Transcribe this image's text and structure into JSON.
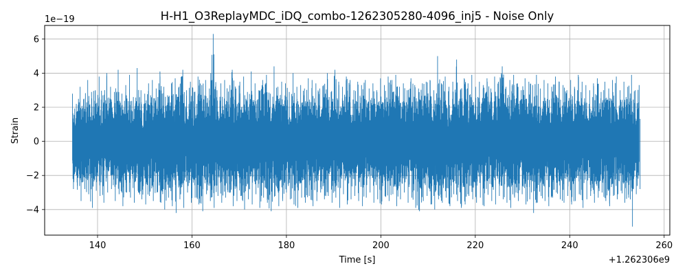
{
  "chart_data": {
    "type": "line",
    "title": "H-H1_O3ReplayMDC_iDQ_combo-1262305280-4096_inj5 - Noise Only",
    "xlabel": "Time [s]",
    "ylabel": "Strain",
    "x_offset_label": "+1.262306e9",
    "y_scale_label": "1e−19",
    "xlim": [
      128.8,
      261.2
    ],
    "ylim": [
      -5.5,
      6.8
    ],
    "x_ticks": [
      140,
      160,
      180,
      200,
      220,
      240,
      260
    ],
    "x_tick_labels": [
      "140",
      "160",
      "180",
      "200",
      "220",
      "240",
      "260"
    ],
    "y_ticks": [
      -4,
      -2,
      0,
      2,
      4,
      6
    ],
    "y_tick_labels": [
      "−4",
      "−2",
      "0",
      "2",
      "4",
      "6"
    ],
    "grid": true,
    "series": [
      {
        "color": "#1f77b4",
        "x_start": 134.7,
        "x_end": 254.7,
        "envelope_upper": [
          2.8,
          2.2,
          3.2,
          2.5,
          3.6,
          2.9,
          3.0,
          3.8,
          2.7,
          4.0,
          3.2,
          2.9,
          4.2,
          2.8,
          3.3,
          3.9,
          2.6,
          4.3,
          3.0,
          2.8,
          3.4,
          3.6,
          3.1,
          4.1,
          3.2,
          2.7,
          3.4,
          3.7,
          3.2,
          4.2,
          3.0,
          3.5,
          2.9,
          3.8,
          3.3,
          3.6,
          3.1,
          6.3,
          3.0,
          3.4,
          3.6,
          2.9,
          4.2,
          3.1,
          3.5,
          3.8,
          2.9,
          4.1,
          3.4,
          3.0,
          3.6,
          3.9,
          2.8,
          4.4,
          3.2,
          3.5,
          3.4,
          2.9,
          4.0,
          3.2,
          3.3,
          3.1,
          3.7,
          3.6,
          3.4,
          3.1,
          3.3,
          4.0,
          2.9,
          4.2,
          3.5,
          3.2,
          3.8,
          3.6,
          3.0,
          3.5,
          3.3,
          3.6,
          3.1,
          3.4,
          3.0,
          3.7,
          3.3,
          3.8,
          3.6,
          3.9,
          3.2,
          3.4,
          3.0,
          3.7,
          3.3,
          3.1,
          3.4,
          3.5,
          3.6,
          3.0,
          5.0,
          3.4,
          3.8,
          3.2,
          3.5,
          4.8,
          3.0,
          3.7,
          3.4,
          3.9,
          3.2,
          3.5,
          3.3,
          3.7,
          3.1,
          3.8,
          3.5,
          4.4,
          3.2,
          3.6,
          3.9,
          3.4,
          3.0,
          3.7,
          3.5,
          3.3,
          3.9,
          3.1,
          3.6,
          3.4,
          3.2,
          3.8,
          3.5,
          3.3,
          3.0,
          3.6,
          3.2,
          3.9,
          3.5,
          3.3,
          3.0,
          3.4,
          3.7,
          2.9,
          3.5,
          3.1,
          3.6,
          3.8,
          3.0,
          3.5,
          3.2,
          3.9,
          3.0,
          3.3
        ],
        "envelope_lower": [
          -2.8,
          -2.6,
          -3.5,
          -2.8,
          -3.1,
          -3.9,
          -2.9,
          -3.2,
          -3.6,
          -3.0,
          -2.8,
          -3.5,
          -3.1,
          -3.8,
          -3.0,
          -3.3,
          -3.6,
          -2.9,
          -3.4,
          -3.7,
          -3.2,
          -3.5,
          -3.0,
          -3.6,
          -4.0,
          -3.3,
          -3.8,
          -4.2,
          -3.4,
          -3.9,
          -3.0,
          -3.6,
          -3.3,
          -3.7,
          -4.1,
          -3.1,
          -3.5,
          -3.9,
          -3.2,
          -3.6,
          -3.3,
          -3.0,
          -3.8,
          -3.5,
          -3.2,
          -4.0,
          -3.4,
          -3.7,
          -3.1,
          -3.9,
          -3.3,
          -3.6,
          -4.1,
          -3.2,
          -3.8,
          -3.5,
          -3.0,
          -3.4,
          -3.7,
          -3.9,
          -3.3,
          -3.6,
          -3.2,
          -3.8,
          -3.5,
          -3.0,
          -3.4,
          -3.2,
          -3.6,
          -3.3,
          -3.9,
          -3.1,
          -3.7,
          -3.4,
          -3.2,
          -3.5,
          -3.8,
          -3.3,
          -3.0,
          -3.6,
          -3.4,
          -3.7,
          -3.2,
          -3.5,
          -3.1,
          -3.8,
          -3.4,
          -3.0,
          -3.6,
          -3.3,
          -3.9,
          -4.1,
          -3.5,
          -3.2,
          -3.7,
          -4.0,
          -3.4,
          -3.6,
          -3.3,
          -3.8,
          -3.1,
          -3.5,
          -3.9,
          -3.7,
          -3.2,
          -3.4,
          -3.6,
          -3.3,
          -3.8,
          -3.0,
          -3.5,
          -3.7,
          -3.2,
          -3.4,
          -3.6,
          -3.9,
          -3.3,
          -3.5,
          -3.1,
          -3.7,
          -3.4,
          -4.2,
          -3.6,
          -3.2,
          -3.5,
          -3.8,
          -3.3,
          -3.0,
          -3.4,
          -3.6,
          -3.2,
          -3.7,
          -3.5,
          -3.1,
          -3.9,
          -3.4,
          -3.2,
          -3.6,
          -3.3,
          -3.0,
          -3.5,
          -3.8,
          -3.2,
          -3.4,
          -2.9,
          -3.6,
          -3.3,
          -5.0,
          -3.1,
          -2.8
        ]
      }
    ]
  }
}
